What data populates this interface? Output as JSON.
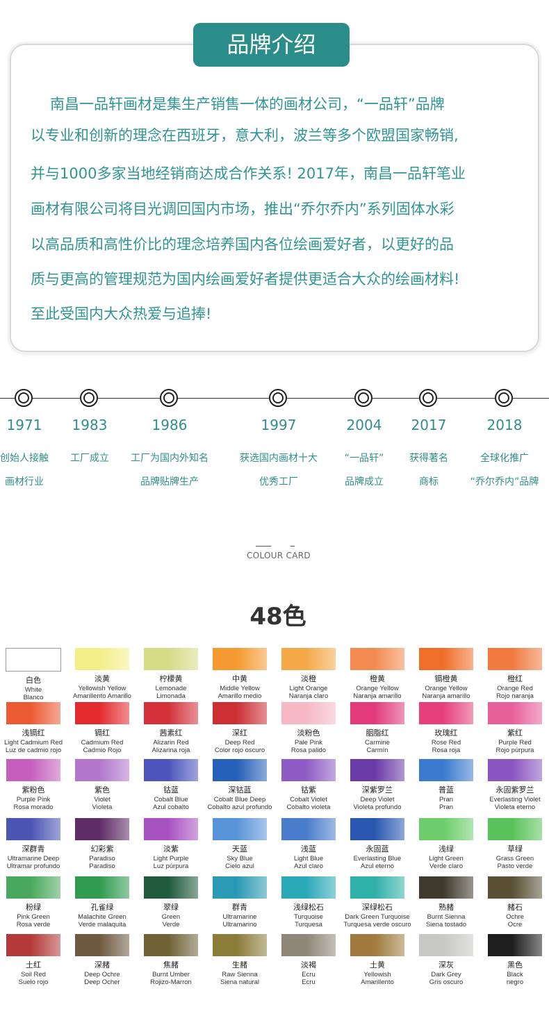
{
  "brand": {
    "title": "品牌介绍",
    "lines": [
      "南昌一品轩画材是集生产销售一体的画材公司，“一品轩”品牌",
      "以专业和创新的理念在西班牙，意大利，波兰等多个欧盟国家畅销,",
      "并与1000多家当地经销商达成合作关系! 2017年，南昌一品轩笔业",
      "画材有限公司将目光调回国内市场，推出“乔尔乔内”系列固体水彩",
      "以高品质和高性价比的理念培养国内各位绘画爱好者，以更好的品",
      "质与更高的管理规范为国内绘画爱好者提供更适合大众的绘画材料!",
      "至此受国内大众热爱与追捧!"
    ],
    "accent": "#2a8d8a"
  },
  "timeline": [
    {
      "year": "1971",
      "desc": [
        "创始人接触",
        "画材行业"
      ]
    },
    {
      "year": "1983",
      "desc": [
        "工厂成立",
        ""
      ]
    },
    {
      "year": "1986",
      "desc": [
        "工厂为国内外知名",
        "品牌贴牌生产"
      ]
    },
    {
      "year": "1997",
      "desc": [
        "获选国内画材十大",
        "优秀工厂"
      ]
    },
    {
      "year": "2004",
      "desc": [
        "“一品轩”",
        "品牌成立"
      ]
    },
    {
      "year": "2017",
      "desc": [
        "获得著名",
        "商标"
      ]
    },
    {
      "year": "2018",
      "desc": [
        "全球化推广",
        "“乔尔乔内”品牌"
      ]
    }
  ],
  "colour_card": {
    "label": "COLOUR CARD",
    "count": "48色",
    "swatches": [
      {
        "zh": "白色",
        "en": "White",
        "es": "Blanco",
        "color": "#ffffff"
      },
      {
        "zh": "淡黄",
        "en": "Yellowish Yellow",
        "es": "Amarillento Amarillo",
        "color": "#f3f08a"
      },
      {
        "zh": "柠檬黄",
        "en": "Lemonade",
        "es": "Limonada",
        "color": "#d6db86"
      },
      {
        "zh": "中黄",
        "en": "Middle Yellow",
        "es": "Amarillo medio",
        "color": "#f59a30"
      },
      {
        "zh": "淡橙",
        "en": "Light Orange",
        "es": "Naranja claro",
        "color": "#f5a848"
      },
      {
        "zh": "橙黄",
        "en": "Orange Yellow",
        "es": "Naranja amarillo",
        "color": "#f38a50"
      },
      {
        "zh": "镉橙黄",
        "en": "Orange Yellow",
        "es": "Naranja amarillo",
        "color": "#ef6f2a"
      },
      {
        "zh": "橙红",
        "en": "Orange Red",
        "es": "Rojo naranja",
        "color": "#f07a40"
      },
      {
        "zh": "浅镉红",
        "en": "Light Cadmium Red",
        "es": "Luz de cadmio rojo",
        "color": "#ec5a34"
      },
      {
        "zh": "镉红",
        "en": "Cadmium Red",
        "es": "Cadmio Rojo",
        "color": "#e32a2e"
      },
      {
        "zh": "茜素红",
        "en": "Alizarin Red",
        "es": "Alizarina roja",
        "color": "#d4313a"
      },
      {
        "zh": "深红",
        "en": "Deep Red",
        "es": "Color rojo oscuro",
        "color": "#cc3035"
      },
      {
        "zh": "淡粉色",
        "en": "Pale Pink",
        "es": "Rosa palido",
        "color": "#f6b8c4"
      },
      {
        "zh": "胭脂红",
        "en": "Carmine",
        "es": "Carmín",
        "color": "#e23a7a"
      },
      {
        "zh": "玫瑰红",
        "en": "Rose Red",
        "es": "Rosa roja",
        "color": "#e5407a"
      },
      {
        "zh": "紫红",
        "en": "Purple Red",
        "es": "Rojo púrpura",
        "color": "#e8609a"
      },
      {
        "zh": "紫粉色",
        "en": "Purple Pink",
        "es": "Rosa morado",
        "color": "#c55fbe"
      },
      {
        "zh": "紫色",
        "en": "Violet",
        "es": "Violeta",
        "color": "#b276cc"
      },
      {
        "zh": "钴蓝",
        "en": "Cobalt Blue",
        "es": "Azul cobalto",
        "color": "#4b55bb"
      },
      {
        "zh": "深钴蓝",
        "en": "Cobalt Blue Deep",
        "es": "Cobalto azul profundo",
        "color": "#2660b8"
      },
      {
        "zh": "钴紫",
        "en": "Cobalt Violet",
        "es": "Cobalto violeta",
        "color": "#8e5cc4"
      },
      {
        "zh": "深紫罗兰",
        "en": "Deep Violet",
        "es": "Violeta profundo",
        "color": "#6a3aa6"
      },
      {
        "zh": "普蓝",
        "en": "Pran",
        "es": "Pran",
        "color": "#3b7bce"
      },
      {
        "zh": "永固紫罗兰",
        "en": "Everlasting Violet",
        "es": "Violeta eterno",
        "color": "#8a55c0"
      },
      {
        "zh": "深群青",
        "en": "Ultramarine Deep",
        "es": "Ultramar profundo",
        "color": "#4a55b4"
      },
      {
        "zh": "幻彩紫",
        "en": "Paradiso",
        "es": "Paradiso",
        "color": "#5e2c66"
      },
      {
        "zh": "淡紫",
        "en": "Light Purple",
        "es": "Luz púrpura",
        "color": "#a852c2"
      },
      {
        "zh": "天蓝",
        "en": "Sky Blue",
        "es": "Cielo azul",
        "color": "#5a94d8"
      },
      {
        "zh": "浅蓝",
        "en": "Light Blue",
        "es": "Azul claro",
        "color": "#4a7ccc"
      },
      {
        "zh": "永固蓝",
        "en": "Everlasting Blue",
        "es": "Azul eterno",
        "color": "#2a58b0"
      },
      {
        "zh": "浅绿",
        "en": "Light Green",
        "es": "Verde claro",
        "color": "#6ccd6a"
      },
      {
        "zh": "草绿",
        "en": "Grass Green",
        "es": "Pasto verde",
        "color": "#5ac25a"
      },
      {
        "zh": "粉绿",
        "en": "Pink Green",
        "es": "Rosa verde",
        "color": "#4aa85e"
      },
      {
        "zh": "孔雀绿",
        "en": "Malachite Green",
        "es": "Verde malaquita",
        "color": "#2f9a50"
      },
      {
        "zh": "翠绿",
        "en": "Green",
        "es": "Verde",
        "color": "#1f5a3c"
      },
      {
        "zh": "群青",
        "en": "Ultramarine",
        "es": "Ultramarino",
        "color": "#2a9ab4"
      },
      {
        "zh": "浅绿松石",
        "en": "Turquoise",
        "es": "Turquesa",
        "color": "#2aa8b8"
      },
      {
        "zh": "深绿松石",
        "en": "Dark Green Turquoise",
        "es": "Turquesa verde oscuro",
        "color": "#2fb0a8"
      },
      {
        "zh": "熟赭",
        "en": "Burnt Sienna",
        "es": "Siena tostado",
        "color": "#3e3a2c"
      },
      {
        "zh": "赭石",
        "en": "Ochre",
        "es": "Ocre",
        "color": "#5a5036"
      },
      {
        "zh": "土红",
        "en": "Soil Red",
        "es": "Suelo rojo",
        "color": "#b43a3a"
      },
      {
        "zh": "深赭",
        "en": "Deep Ochre",
        "es": "Deep Ocher",
        "color": "#6e5a40"
      },
      {
        "zh": "焦赭",
        "en": "Burnt Umber",
        "es": "Rojizo-Marron",
        "color": "#6e6236"
      },
      {
        "zh": "生赭",
        "en": "Raw Sienna",
        "es": "Siena natural",
        "color": "#8c7c3a"
      },
      {
        "zh": "淡褐",
        "en": "Ecru",
        "es": "Ecru",
        "color": "#8e8676"
      },
      {
        "zh": "土黄",
        "en": "Yellowish",
        "es": "Amarillento",
        "color": "#a07a3e"
      },
      {
        "zh": "深灰",
        "en": "Dark Grey",
        "es": "Gris oscuro",
        "color": "#c8c8c6"
      },
      {
        "zh": "黑色",
        "en": "Black",
        "es": "negro",
        "color": "#1e1e1e"
      }
    ]
  }
}
